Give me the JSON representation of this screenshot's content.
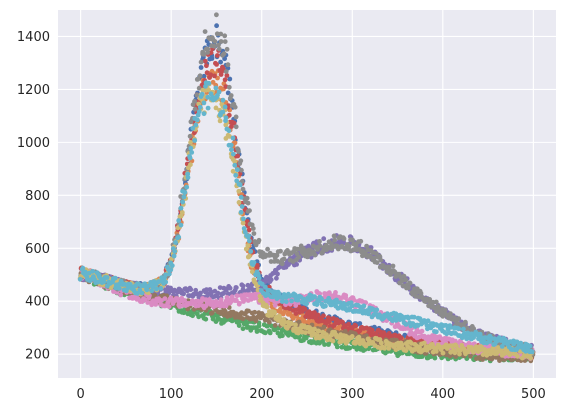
{
  "chart_data": {
    "type": "scatter",
    "title": "",
    "xlabel": "",
    "ylabel": "",
    "xlim": [
      -25,
      525
    ],
    "ylim": [
      110,
      1500
    ],
    "grid": true,
    "legend": "none",
    "x_ticks": [
      0,
      100,
      200,
      300,
      400,
      500
    ],
    "x_tick_labels": [
      "0",
      "100",
      "200",
      "300",
      "400",
      "500"
    ],
    "y_ticks": [
      200,
      400,
      600,
      800,
      1000,
      1200,
      1400
    ],
    "y_tick_labels": [
      "200",
      "400",
      "600",
      "800",
      "1000",
      "1200",
      "1400"
    ],
    "colors": {
      "background": "#eaeaf2",
      "grid": "#ffffff"
    },
    "x": [
      0,
      10,
      20,
      30,
      40,
      50,
      60,
      70,
      80,
      90,
      100,
      110,
      120,
      130,
      140,
      150,
      160,
      170,
      180,
      190,
      200,
      210,
      220,
      230,
      240,
      250,
      260,
      270,
      280,
      290,
      300,
      310,
      320,
      330,
      340,
      350,
      360,
      370,
      380,
      390,
      400,
      410,
      420,
      430,
      440,
      450,
      460,
      470,
      480,
      490,
      500
    ],
    "series": [
      {
        "color": "#4c72b0",
        "values": [
          505,
          495,
          485,
          475,
          465,
          455,
          450,
          445,
          455,
          470,
          540,
          720,
          960,
          1200,
          1340,
          1390,
          1300,
          1060,
          800,
          600,
          480,
          435,
          410,
          390,
          375,
          360,
          348,
          336,
          325,
          315,
          305,
          296,
          288,
          280,
          272,
          265,
          258,
          252,
          246,
          240,
          235,
          230,
          226,
          222,
          218,
          214,
          210,
          207,
          204,
          201,
          198
        ]
      },
      {
        "color": "#dd8452",
        "values": [
          505,
          495,
          485,
          475,
          465,
          455,
          450,
          445,
          455,
          470,
          535,
          700,
          920,
          1130,
          1230,
          1240,
          1170,
          960,
          720,
          530,
          430,
          395,
          372,
          355,
          342,
          330,
          318,
          308,
          298,
          290,
          282,
          274,
          267,
          260,
          254,
          248,
          243,
          238,
          233,
          229,
          225,
          221,
          218,
          215,
          212,
          209,
          206,
          203,
          201,
          199,
          197
        ]
      },
      {
        "color": "#55a868",
        "values": [
          505,
          490,
          475,
          462,
          450,
          438,
          425,
          415,
          405,
          395,
          385,
          375,
          365,
          356,
          347,
          338,
          330,
          322,
          314,
          306,
          298,
          291,
          284,
          277,
          270,
          264,
          258,
          252,
          246,
          240,
          235,
          230,
          225,
          220,
          216,
          212,
          208,
          205,
          202,
          200,
          198,
          196,
          195,
          194,
          193,
          192,
          192,
          193,
          194,
          195,
          196
        ]
      },
      {
        "color": "#c44e52",
        "values": [
          505,
          495,
          485,
          475,
          465,
          455,
          450,
          445,
          455,
          470,
          540,
          715,
          950,
          1180,
          1300,
          1310,
          1230,
          1010,
          770,
          580,
          465,
          425,
          400,
          382,
          367,
          353,
          340,
          328,
          317,
          307,
          297,
          288,
          280,
          272,
          264,
          257,
          251,
          245,
          240,
          235,
          230,
          226,
          222,
          219,
          216,
          213,
          210,
          207,
          204,
          202,
          200
        ]
      },
      {
        "color": "#8172b3",
        "values": [
          505,
          495,
          485,
          475,
          465,
          455,
          450,
          445,
          440,
          438,
          436,
          434,
          432,
          430,
          428,
          430,
          435,
          440,
          445,
          452,
          462,
          490,
          520,
          545,
          565,
          585,
          600,
          612,
          620,
          622,
          615,
          600,
          580,
          555,
          525,
          495,
          465,
          435,
          410,
          385,
          360,
          335,
          312,
          292,
          276,
          262,
          250,
          240,
          230,
          222,
          216
        ]
      },
      {
        "color": "#937860",
        "values": [
          505,
          492,
          480,
          468,
          456,
          445,
          435,
          425,
          416,
          408,
          400,
          393,
          386,
          380,
          374,
          368,
          362,
          356,
          350,
          344,
          338,
          330,
          322,
          314,
          306,
          298,
          291,
          284,
          277,
          270,
          264,
          258,
          252,
          246,
          240,
          235,
          230,
          225,
          220,
          216,
          212,
          208,
          204,
          201,
          198,
          196,
          194,
          193,
          192,
          192,
          193
        ]
      },
      {
        "color": "#da8bc3",
        "values": [
          505,
          495,
          480,
          465,
          450,
          435,
          420,
          410,
          402,
          398,
          396,
          394,
          392,
          392,
          393,
          395,
          398,
          402,
          407,
          412,
          410,
          405,
          400,
          398,
          402,
          410,
          418,
          422,
          420,
          412,
          400,
          385,
          368,
          350,
          332,
          315,
          298,
          282,
          268,
          256,
          246,
          238,
          231,
          225,
          220,
          216,
          212,
          209,
          206,
          203,
          200
        ]
      },
      {
        "color": "#8c8c8c",
        "values": [
          505,
          495,
          485,
          475,
          465,
          455,
          450,
          445,
          455,
          470,
          545,
          735,
          990,
          1240,
          1400,
          1430,
          1350,
          1100,
          840,
          660,
          590,
          570,
          565,
          570,
          580,
          590,
          600,
          612,
          620,
          622,
          615,
          600,
          580,
          555,
          525,
          495,
          465,
          435,
          410,
          385,
          360,
          335,
          312,
          292,
          276,
          262,
          250,
          240,
          230,
          222,
          216
        ]
      },
      {
        "color": "#ccb974",
        "values": [
          505,
          495,
          485,
          475,
          465,
          455,
          450,
          445,
          455,
          470,
          535,
          700,
          920,
          1110,
          1180,
          1150,
          1080,
          900,
          680,
          500,
          395,
          350,
          325,
          308,
          296,
          286,
          278,
          271,
          265,
          259,
          254,
          249,
          245,
          241,
          237,
          234,
          231,
          228,
          225,
          222,
          220,
          218,
          216,
          214,
          212,
          210,
          208,
          206,
          204,
          202,
          200
        ]
      },
      {
        "color": "#64b5cd",
        "values": [
          505,
          495,
          485,
          475,
          465,
          455,
          450,
          445,
          455,
          470,
          540,
          710,
          930,
          1120,
          1180,
          1170,
          1110,
          940,
          720,
          545,
          450,
          425,
          418,
          415,
          412,
          408,
          402,
          396,
          390,
          383,
          376,
          368,
          360,
          352,
          344,
          336,
          328,
          320,
          312,
          304,
          296,
          288,
          280,
          272,
          264,
          256,
          248,
          240,
          232,
          224,
          216
        ]
      }
    ]
  }
}
